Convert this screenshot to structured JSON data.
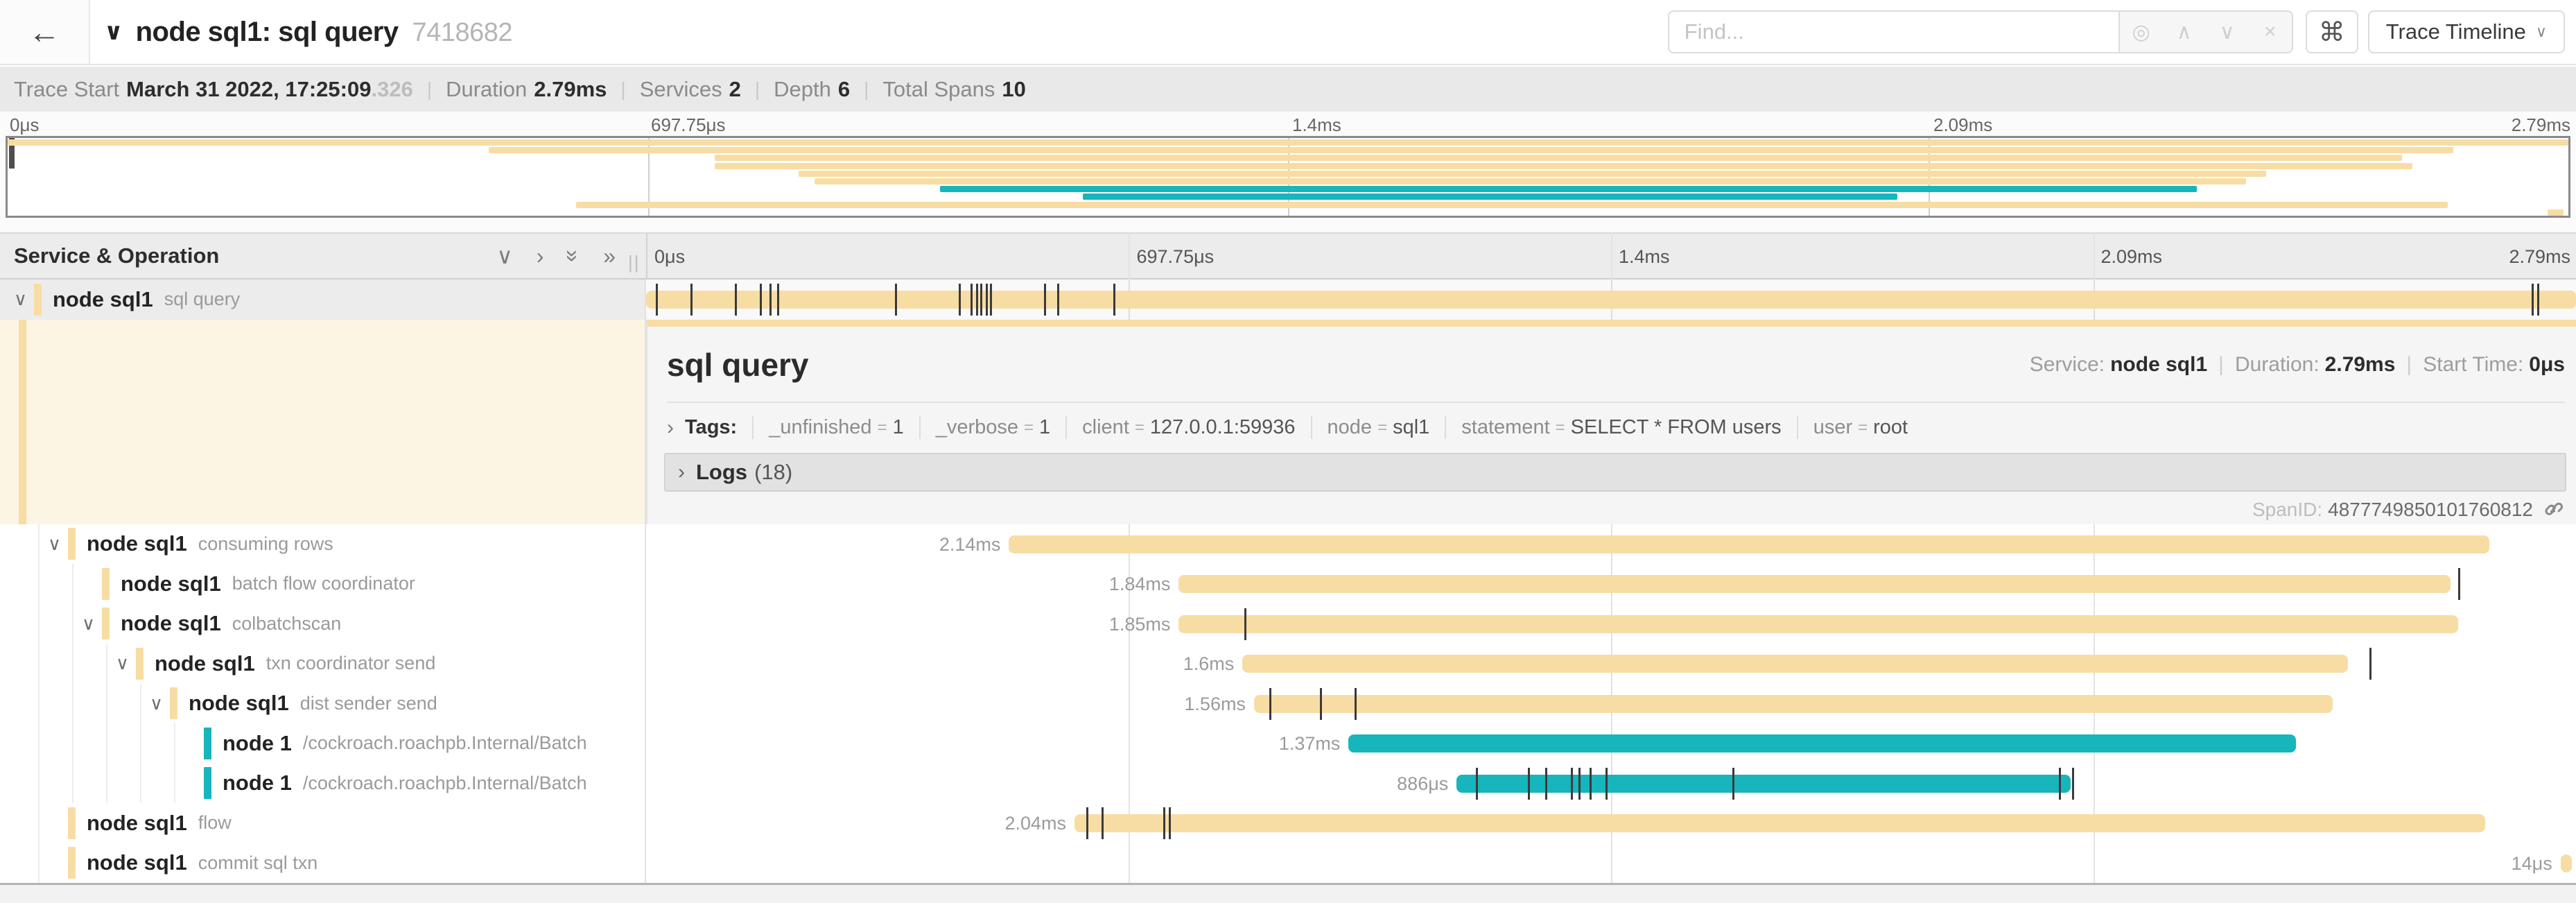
{
  "header": {
    "back_icon": "←",
    "collapse_icon": "∨",
    "title": "node sql1: sql query",
    "trace_id": "7418682",
    "find_placeholder": "Find...",
    "find_icons": [
      {
        "glyph": "◎",
        "name": "focus-match-icon"
      },
      {
        "glyph": "∧",
        "name": "prev-result-icon"
      },
      {
        "glyph": "∨",
        "name": "next-result-icon"
      },
      {
        "glyph": "×",
        "name": "clear-search-icon"
      }
    ],
    "shortcut_icon": "⌘",
    "view_selector": "Trace Timeline",
    "view_chevron": "∨"
  },
  "summary": {
    "items": [
      {
        "label": "Trace Start",
        "value": "March 31 2022, 17:25:09",
        "suffix": ".326"
      },
      {
        "label": "Duration",
        "value": "2.79ms"
      },
      {
        "label": "Services",
        "value": "2"
      },
      {
        "label": "Depth",
        "value": "6"
      },
      {
        "label": "Total Spans",
        "value": "10"
      }
    ]
  },
  "ruler": {
    "ticks": [
      "0μs",
      "697.75μs",
      "1.4ms",
      "2.09ms",
      "2.79ms"
    ]
  },
  "tree_header": {
    "title": "Service & Operation",
    "icons": [
      {
        "glyph": "∨",
        "rot": false,
        "name": "collapse-one-icon"
      },
      {
        "glyph": "›",
        "rot": false,
        "name": "expand-one-icon"
      },
      {
        "glyph": "»",
        "rot": true,
        "name": "collapse-all-icon"
      },
      {
        "glyph": "»",
        "rot": false,
        "name": "expand-all-icon"
      }
    ],
    "resizer_glyph": "||"
  },
  "colors": {
    "tan": "#F7DDA4",
    "teal": "#17B5BC",
    "dark_tick": "#3a3a3a"
  },
  "spans": [
    {
      "service": "node sql1",
      "operation": "sql query",
      "depth": 0,
      "expandable": true,
      "color": "tan",
      "start": 0,
      "width": 100,
      "duration_label": "",
      "ticks": [
        0.5,
        2.3,
        4.6,
        5.9,
        6.4,
        6.8,
        12.9,
        16.2,
        16.8,
        17.1,
        17.3,
        17.6,
        17.8,
        20.6,
        21.3,
        24.2,
        97.7,
        98.0
      ],
      "selected": true,
      "detail": true
    },
    {
      "service": "node sql1",
      "operation": "consuming rows",
      "depth": 1,
      "expandable": true,
      "color": "tan",
      "start": 18.8,
      "width": 76.7,
      "duration_label": "2.14ms",
      "ticks": []
    },
    {
      "service": "node sql1",
      "operation": "batch flow coordinator",
      "depth": 2,
      "expandable": false,
      "color": "tan",
      "start": 27.6,
      "width": 65.9,
      "duration_label": "1.84ms",
      "ticks": [
        93.9
      ]
    },
    {
      "service": "node sql1",
      "operation": "colbatchscan",
      "depth": 2,
      "expandable": true,
      "color": "tan",
      "start": 27.6,
      "width": 66.3,
      "duration_label": "1.85ms",
      "ticks": [
        31.0
      ]
    },
    {
      "service": "node sql1",
      "operation": "txn coordinator send",
      "depth": 3,
      "expandable": true,
      "color": "tan",
      "start": 30.9,
      "width": 57.3,
      "duration_label": "1.6ms",
      "ticks": [
        89.3
      ]
    },
    {
      "service": "node sql1",
      "operation": "dist sender send",
      "depth": 4,
      "expandable": true,
      "color": "tan",
      "start": 31.5,
      "width": 55.9,
      "duration_label": "1.56ms",
      "ticks": [
        32.3,
        34.9,
        36.7
      ]
    },
    {
      "service": "node 1",
      "operation": "/cockroach.roachpb.Internal/Batch",
      "depth": 5,
      "expandable": false,
      "color": "teal",
      "start": 36.4,
      "width": 49.1,
      "duration_label": "1.37ms",
      "ticks": []
    },
    {
      "service": "node 1",
      "operation": "/cockroach.roachpb.Internal/Batch",
      "depth": 5,
      "expandable": false,
      "color": "teal",
      "start": 42.0,
      "width": 31.8,
      "duration_label": "886μs",
      "ticks": [
        43.0,
        45.7,
        46.6,
        47.9,
        48.3,
        48.9,
        49.7,
        56.3,
        73.2,
        73.9
      ]
    },
    {
      "service": "node sql1",
      "operation": "flow",
      "depth": 1,
      "expandable": false,
      "color": "tan",
      "start": 22.2,
      "width": 73.1,
      "duration_label": "2.04ms",
      "ticks": [
        22.8,
        23.6,
        26.8,
        27.1
      ]
    },
    {
      "service": "node sql1",
      "operation": "commit sql txn",
      "depth": 1,
      "expandable": false,
      "color": "tan",
      "start": 99.2,
      "width": 0.6,
      "duration_label": "14μs",
      "ticks": []
    }
  ],
  "detail": {
    "title": "sql query",
    "meta": [
      {
        "label": "Service:",
        "value": "node sql1"
      },
      {
        "label": "Duration:",
        "value": "2.79ms"
      },
      {
        "label": "Start Time:",
        "value": "0μs"
      }
    ],
    "tags_chevron": "›",
    "tags_label": "Tags:",
    "tags": [
      {
        "key": "_unfinished",
        "value": "1"
      },
      {
        "key": "_verbose",
        "value": "1"
      },
      {
        "key": "client",
        "value": "127.0.0.1:59936"
      },
      {
        "key": "node",
        "value": "sql1"
      },
      {
        "key": "statement",
        "value": "SELECT * FROM users"
      },
      {
        "key": "user",
        "value": "root"
      }
    ],
    "logs_chevron": "›",
    "logs_label": "Logs",
    "logs_count": "(18)",
    "span_id_label": "SpanID:",
    "span_id": "4877749850101760812"
  }
}
